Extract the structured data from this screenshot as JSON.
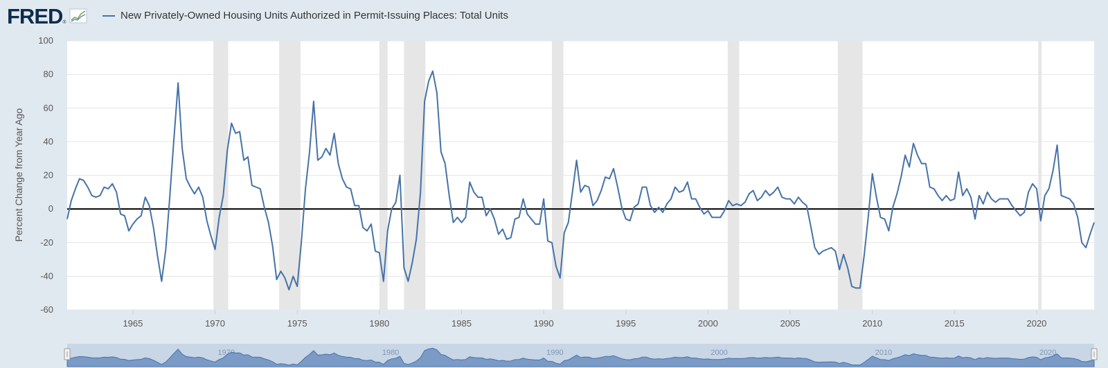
{
  "header": {
    "logo_text": "FRED",
    "logo_mark": "®",
    "legend_label": "New Privately-Owned Housing Units Authorized in Permit-Issuing Places: Total Units"
  },
  "colors": {
    "line": "#4572a7",
    "recession": "#e6e6e6",
    "zero_line": "#000000",
    "grid": "#e6e6e6",
    "page_bg": "#e1e9f0",
    "navigator_fill": "#6f8fbf"
  },
  "chart_data": {
    "type": "line",
    "title": "",
    "xlabel": "",
    "ylabel": "Percent Change from Year Ago",
    "xlim": [
      1961.0,
      2023.5
    ],
    "ylim": [
      -60,
      100
    ],
    "yticks": [
      -60,
      -40,
      -20,
      0,
      20,
      40,
      60,
      80,
      100
    ],
    "xticks": [
      1965,
      1970,
      1975,
      1980,
      1985,
      1990,
      1995,
      2000,
      2005,
      2010,
      2015,
      2020
    ],
    "grid": "horizontal",
    "zero_line": true,
    "recessions": [
      [
        1969.9,
        1970.8
      ],
      [
        1973.9,
        1975.2
      ],
      [
        1980.0,
        1980.5
      ],
      [
        1981.5,
        1982.8
      ],
      [
        1990.5,
        1991.2
      ],
      [
        2001.2,
        2001.9
      ],
      [
        2007.9,
        2009.4
      ],
      [
        2020.1,
        2020.3
      ]
    ],
    "series": [
      {
        "name": "New Privately-Owned Housing Units Authorized in Permit-Issuing Places: Total Units",
        "points": [
          [
            1961.0,
            -6
          ],
          [
            1961.25,
            5
          ],
          [
            1961.5,
            12
          ],
          [
            1961.75,
            18
          ],
          [
            1962.0,
            17
          ],
          [
            1962.25,
            13
          ],
          [
            1962.5,
            8
          ],
          [
            1962.75,
            7
          ],
          [
            1963.0,
            8
          ],
          [
            1963.25,
            13
          ],
          [
            1963.5,
            12
          ],
          [
            1963.75,
            15
          ],
          [
            1964.0,
            10
          ],
          [
            1964.25,
            -3
          ],
          [
            1964.5,
            -4
          ],
          [
            1964.75,
            -13
          ],
          [
            1965.0,
            -9
          ],
          [
            1965.25,
            -6
          ],
          [
            1965.5,
            -4
          ],
          [
            1965.75,
            7
          ],
          [
            1966.0,
            2
          ],
          [
            1966.25,
            -11
          ],
          [
            1966.5,
            -28
          ],
          [
            1966.75,
            -43
          ],
          [
            1967.0,
            -24
          ],
          [
            1967.25,
            8
          ],
          [
            1967.5,
            42
          ],
          [
            1967.75,
            75
          ],
          [
            1968.0,
            36
          ],
          [
            1968.25,
            18
          ],
          [
            1968.5,
            13
          ],
          [
            1968.75,
            9
          ],
          [
            1969.0,
            13
          ],
          [
            1969.25,
            7
          ],
          [
            1969.5,
            -7
          ],
          [
            1969.75,
            -16
          ],
          [
            1970.0,
            -24
          ],
          [
            1970.25,
            -5
          ],
          [
            1970.5,
            8
          ],
          [
            1970.75,
            35
          ],
          [
            1971.0,
            51
          ],
          [
            1971.25,
            45
          ],
          [
            1971.5,
            46
          ],
          [
            1971.75,
            29
          ],
          [
            1972.0,
            31
          ],
          [
            1972.25,
            14
          ],
          [
            1972.5,
            13
          ],
          [
            1972.75,
            12
          ],
          [
            1973.0,
            1
          ],
          [
            1973.25,
            -8
          ],
          [
            1973.5,
            -22
          ],
          [
            1973.75,
            -42
          ],
          [
            1974.0,
            -37
          ],
          [
            1974.25,
            -41
          ],
          [
            1974.5,
            -48
          ],
          [
            1974.75,
            -40
          ],
          [
            1975.0,
            -46
          ],
          [
            1975.25,
            -20
          ],
          [
            1975.5,
            12
          ],
          [
            1975.75,
            34
          ],
          [
            1976.0,
            64
          ],
          [
            1976.25,
            29
          ],
          [
            1976.5,
            31
          ],
          [
            1976.75,
            36
          ],
          [
            1977.0,
            32
          ],
          [
            1977.25,
            45
          ],
          [
            1977.5,
            27
          ],
          [
            1977.75,
            18
          ],
          [
            1978.0,
            13
          ],
          [
            1978.25,
            12
          ],
          [
            1978.5,
            2
          ],
          [
            1978.75,
            2
          ],
          [
            1979.0,
            -11
          ],
          [
            1979.25,
            -13
          ],
          [
            1979.5,
            -9
          ],
          [
            1979.75,
            -25
          ],
          [
            1980.0,
            -26
          ],
          [
            1980.25,
            -43
          ],
          [
            1980.5,
            -13
          ],
          [
            1980.75,
            0
          ],
          [
            1981.0,
            4
          ],
          [
            1981.25,
            20
          ],
          [
            1981.5,
            -35
          ],
          [
            1981.75,
            -43
          ],
          [
            1982.0,
            -32
          ],
          [
            1982.25,
            -18
          ],
          [
            1982.5,
            10
          ],
          [
            1982.75,
            64
          ],
          [
            1983.0,
            76
          ],
          [
            1983.25,
            82
          ],
          [
            1983.5,
            69
          ],
          [
            1983.75,
            34
          ],
          [
            1984.0,
            27
          ],
          [
            1984.25,
            8
          ],
          [
            1984.5,
            -8
          ],
          [
            1984.75,
            -5
          ],
          [
            1985.0,
            -8
          ],
          [
            1985.25,
            -5
          ],
          [
            1985.5,
            16
          ],
          [
            1985.75,
            10
          ],
          [
            1986.0,
            7
          ],
          [
            1986.25,
            7
          ],
          [
            1986.5,
            -4
          ],
          [
            1986.75,
            0
          ],
          [
            1987.0,
            -6
          ],
          [
            1987.25,
            -15
          ],
          [
            1987.5,
            -12
          ],
          [
            1987.75,
            -18
          ],
          [
            1988.0,
            -17
          ],
          [
            1988.25,
            -6
          ],
          [
            1988.5,
            -5
          ],
          [
            1988.75,
            6
          ],
          [
            1989.0,
            -3
          ],
          [
            1989.25,
            -6
          ],
          [
            1989.5,
            -9
          ],
          [
            1989.75,
            -9
          ],
          [
            1990.0,
            6
          ],
          [
            1990.25,
            -19
          ],
          [
            1990.5,
            -20
          ],
          [
            1990.75,
            -34
          ],
          [
            1991.0,
            -41
          ],
          [
            1991.25,
            -14
          ],
          [
            1991.5,
            -8
          ],
          [
            1991.75,
            10
          ],
          [
            1992.0,
            29
          ],
          [
            1992.25,
            10
          ],
          [
            1992.5,
            14
          ],
          [
            1992.75,
            13
          ],
          [
            1993.0,
            2
          ],
          [
            1993.25,
            5
          ],
          [
            1993.5,
            11
          ],
          [
            1993.75,
            19
          ],
          [
            1994.0,
            18
          ],
          [
            1994.25,
            24
          ],
          [
            1994.5,
            13
          ],
          [
            1994.75,
            1
          ],
          [
            1995.0,
            -6
          ],
          [
            1995.25,
            -7
          ],
          [
            1995.5,
            1
          ],
          [
            1995.75,
            3
          ],
          [
            1996.0,
            13
          ],
          [
            1996.25,
            13
          ],
          [
            1996.5,
            2
          ],
          [
            1996.75,
            -2
          ],
          [
            1997.0,
            1
          ],
          [
            1997.25,
            -2
          ],
          [
            1997.5,
            3
          ],
          [
            1997.75,
            6
          ],
          [
            1998.0,
            13
          ],
          [
            1998.25,
            10
          ],
          [
            1998.5,
            11
          ],
          [
            1998.75,
            16
          ],
          [
            1999.0,
            6
          ],
          [
            1999.25,
            6
          ],
          [
            1999.5,
            1
          ],
          [
            1999.75,
            -3
          ],
          [
            2000.0,
            -1
          ],
          [
            2000.25,
            -5
          ],
          [
            2000.5,
            -5
          ],
          [
            2000.75,
            -5
          ],
          [
            2001.0,
            -1
          ],
          [
            2001.25,
            5
          ],
          [
            2001.5,
            2
          ],
          [
            2001.75,
            3
          ],
          [
            2002.0,
            2
          ],
          [
            2002.25,
            4
          ],
          [
            2002.5,
            9
          ],
          [
            2002.75,
            11
          ],
          [
            2003.0,
            5
          ],
          [
            2003.25,
            7
          ],
          [
            2003.5,
            11
          ],
          [
            2003.75,
            8
          ],
          [
            2004.0,
            10
          ],
          [
            2004.25,
            13
          ],
          [
            2004.5,
            7
          ],
          [
            2004.75,
            6
          ],
          [
            2005.0,
            6
          ],
          [
            2005.25,
            3
          ],
          [
            2005.5,
            7
          ],
          [
            2005.75,
            4
          ],
          [
            2006.0,
            2
          ],
          [
            2006.25,
            -10
          ],
          [
            2006.5,
            -23
          ],
          [
            2006.75,
            -27
          ],
          [
            2007.0,
            -25
          ],
          [
            2007.25,
            -24
          ],
          [
            2007.5,
            -23
          ],
          [
            2007.75,
            -25
          ],
          [
            2008.0,
            -36
          ],
          [
            2008.25,
            -27
          ],
          [
            2008.5,
            -35
          ],
          [
            2008.75,
            -46
          ],
          [
            2009.0,
            -47
          ],
          [
            2009.25,
            -47
          ],
          [
            2009.5,
            -28
          ],
          [
            2009.75,
            -5
          ],
          [
            2010.0,
            21
          ],
          [
            2010.25,
            7
          ],
          [
            2010.5,
            -5
          ],
          [
            2010.75,
            -6
          ],
          [
            2011.0,
            -13
          ],
          [
            2011.25,
            1
          ],
          [
            2011.5,
            9
          ],
          [
            2011.75,
            19
          ],
          [
            2012.0,
            32
          ],
          [
            2012.25,
            25
          ],
          [
            2012.5,
            39
          ],
          [
            2012.75,
            32
          ],
          [
            2013.0,
            27
          ],
          [
            2013.25,
            27
          ],
          [
            2013.5,
            13
          ],
          [
            2013.75,
            12
          ],
          [
            2014.0,
            8
          ],
          [
            2014.25,
            5
          ],
          [
            2014.5,
            8
          ],
          [
            2014.75,
            5
          ],
          [
            2015.0,
            6
          ],
          [
            2015.25,
            22
          ],
          [
            2015.5,
            8
          ],
          [
            2015.75,
            12
          ],
          [
            2016.0,
            7
          ],
          [
            2016.25,
            -6
          ],
          [
            2016.5,
            8
          ],
          [
            2016.75,
            3
          ],
          [
            2017.0,
            10
          ],
          [
            2017.25,
            6
          ],
          [
            2017.5,
            4
          ],
          [
            2017.75,
            6
          ],
          [
            2018.0,
            6
          ],
          [
            2018.25,
            6
          ],
          [
            2018.5,
            2
          ],
          [
            2018.75,
            -1
          ],
          [
            2019.0,
            -4
          ],
          [
            2019.25,
            -2
          ],
          [
            2019.5,
            10
          ],
          [
            2019.75,
            15
          ],
          [
            2020.0,
            12
          ],
          [
            2020.25,
            -7
          ],
          [
            2020.5,
            8
          ],
          [
            2020.75,
            12
          ],
          [
            2021.0,
            23
          ],
          [
            2021.25,
            38
          ],
          [
            2021.5,
            8
          ],
          [
            2021.75,
            7
          ],
          [
            2022.0,
            6
          ],
          [
            2022.25,
            3
          ],
          [
            2022.5,
            -5
          ],
          [
            2022.75,
            -20
          ],
          [
            2023.0,
            -23
          ],
          [
            2023.25,
            -15
          ],
          [
            2023.5,
            -8
          ]
        ]
      }
    ]
  },
  "navigator": {
    "year_labels": [
      "1970",
      "1980",
      "1990",
      "2000",
      "2010",
      "2020"
    ]
  }
}
